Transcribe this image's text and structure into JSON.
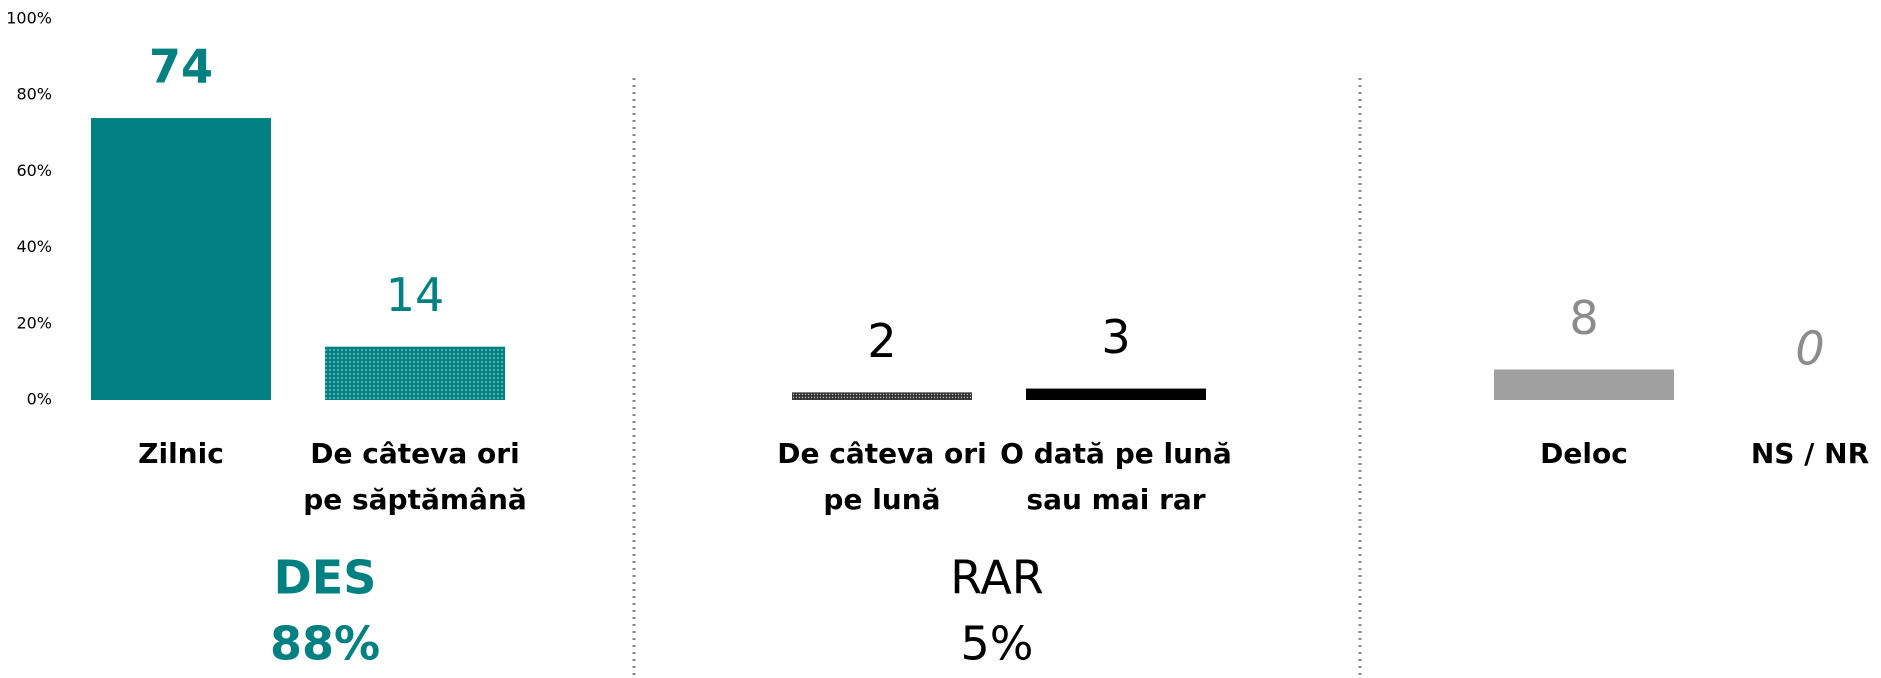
{
  "chart_data": {
    "type": "bar",
    "categories": [
      [
        "Zilnic"
      ],
      [
        "De câteva ori",
        "pe săptămână"
      ],
      [
        "De câteva ori",
        "pe lună"
      ],
      [
        "O dată pe lună",
        "sau mai rar"
      ],
      [
        "Deloc"
      ],
      [
        "NS / NR"
      ]
    ],
    "values": [
      74,
      14,
      2,
      3,
      8,
      0
    ],
    "colors": [
      "#008080",
      "#008080",
      "#555555",
      "#000000",
      "#a0a0a0",
      "#a0a0a0"
    ],
    "patterned": [
      false,
      true,
      true,
      false,
      false,
      false
    ],
    "label_colors": [
      "#008080",
      "#008080",
      "#000000",
      "#000000",
      "#8c8c8c",
      "#8c8c8c"
    ],
    "ylim": [
      0,
      100
    ],
    "yticks": [
      {
        "value": 0,
        "label": "0%"
      },
      {
        "value": 20,
        "label": "20%"
      },
      {
        "value": 40,
        "label": "40%"
      },
      {
        "value": 60,
        "label": "60%"
      },
      {
        "value": 80,
        "label": "80%"
      },
      {
        "value": 100,
        "label": "100%"
      }
    ],
    "annotations": [
      {
        "lines": [
          "DES",
          "88%"
        ],
        "color": "#008080",
        "bold": true
      },
      {
        "lines": [
          "RAR",
          "5%"
        ],
        "color": "#000000",
        "bold": false
      }
    ]
  }
}
